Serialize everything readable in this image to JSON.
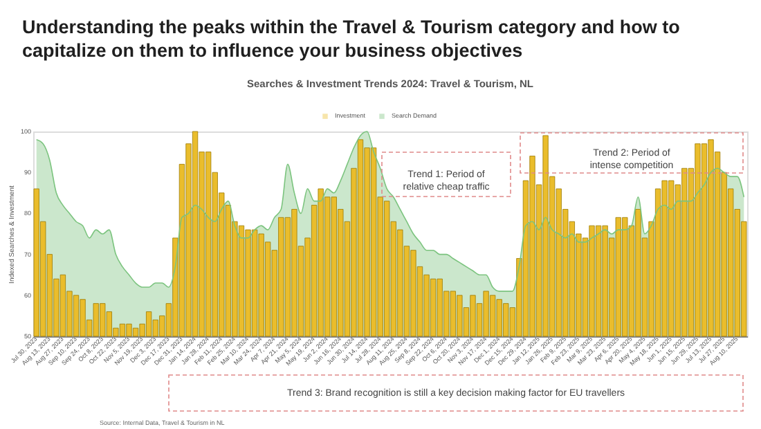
{
  "chart_data": {
    "type": "bar",
    "title": "Understanding the peaks within the Travel & Tourism category and how to capitalize on them to influence your business objectives",
    "subtitle": "Searches & Investment Trends 2024: Travel & Tourism, NL",
    "ylabel": "Indexed Searches & Investment",
    "categories": [
      "Jul 30, 2023",
      null,
      "Aug 13, 2023",
      null,
      "Aug 27, 2023",
      null,
      "Sep 10, 2023",
      null,
      "Sep 24, 2023",
      null,
      "Oct 8, 2023",
      null,
      "Oct 22, 2023",
      null,
      "Nov 5, 2023",
      null,
      "Nov 19, 2023",
      null,
      "Dec 3, 2023",
      null,
      "Dec 17, 2023",
      null,
      "Dec 31, 2023",
      null,
      "Jan 14, 2024",
      null,
      "Jan 28, 2024",
      null,
      "Feb 11, 2024",
      null,
      "Feb 25, 2024",
      null,
      "Mar 10, 2024",
      null,
      "Mar 24, 2024",
      null,
      "Apr 7, 2024",
      null,
      "Apr 21, 2024",
      null,
      "May 5, 2024",
      null,
      "May 19, 2024",
      null,
      "Jun 2, 2024",
      null,
      "Jun 16, 2024",
      null,
      "Jun 30, 2024",
      null,
      "Jul 14, 2024",
      null,
      "Jul 28, 2024",
      null,
      "Aug 11, 2024",
      null,
      "Aug 25, 2024",
      null,
      "Sep 8, 2024",
      null,
      "Sep 22, 2024",
      null,
      "Oct 6, 2024",
      null,
      "Oct 20, 2024",
      null,
      "Nov 3, 2024",
      null,
      "Nov 17, 2024",
      null,
      "Dec 1, 2024",
      null,
      "Dec 15, 2024",
      null,
      "Dec 29, 2024",
      null,
      "Jan 12, 2025",
      null,
      "Jan 26, 2025",
      null,
      "Feb 9, 2025",
      null,
      "Feb 23, 2025",
      null,
      "Mar 9, 2025",
      null,
      "Mar 23, 2025",
      null,
      "Apr 6, 2025",
      null,
      "Apr 20, 2025",
      null,
      "May 4, 2025",
      null,
      "May 18, 2025",
      null,
      "Jun 1, 2025",
      null,
      "Jun 15, 2025",
      null,
      "Jun 29, 2025",
      null,
      "Jul 13, 2025",
      null,
      "Jul 27, 2025",
      null,
      "Aug 10, 2025",
      null
    ],
    "series": [
      {
        "name": "Investment",
        "color": "#eabd2c",
        "values": [
          86,
          78,
          70,
          64,
          65,
          61,
          60,
          59,
          54,
          58,
          58,
          56,
          52,
          53,
          53,
          52,
          53,
          56,
          54,
          55,
          58,
          74,
          92,
          97,
          100,
          95,
          95,
          90,
          85,
          82,
          78,
          77,
          76,
          76,
          75,
          73,
          71,
          79,
          79,
          81,
          72,
          74,
          82,
          86,
          84,
          84,
          81,
          78,
          91,
          98,
          96,
          96,
          84,
          83,
          78,
          76,
          72,
          71,
          67,
          65,
          64,
          64,
          61,
          61,
          60,
          57,
          60,
          58,
          61,
          60,
          59,
          58,
          57,
          69,
          88,
          94,
          87,
          99,
          89,
          86,
          81,
          78,
          75,
          74,
          77,
          77,
          77,
          74,
          79,
          79,
          77,
          81,
          74,
          78,
          86,
          88,
          88,
          87,
          91,
          91,
          97,
          97,
          98,
          95,
          90,
          86,
          81,
          78
        ]
      },
      {
        "name": "Search Demand",
        "type": "area",
        "color": "#7cc47f",
        "values": [
          98,
          97,
          93,
          85,
          82,
          80,
          78,
          77,
          74,
          76,
          75,
          76,
          70,
          67,
          65,
          63,
          62,
          62,
          63,
          63,
          62,
          67,
          79,
          80,
          82,
          81,
          79,
          78,
          81,
          83,
          77,
          74,
          74,
          76,
          77,
          76,
          79,
          81,
          92,
          85,
          80,
          86,
          83,
          83,
          86,
          85,
          88,
          92,
          96,
          99,
          100,
          95,
          91,
          86,
          84,
          81,
          78,
          75,
          73,
          71,
          71,
          70,
          70,
          69,
          68,
          67,
          66,
          65,
          65,
          62,
          61,
          61,
          61,
          67,
          77,
          78,
          76,
          79,
          76,
          75,
          74,
          75,
          73,
          73,
          74,
          75,
          76,
          75,
          76,
          76,
          77,
          84,
          75,
          77,
          81,
          82,
          81,
          83,
          83,
          83,
          85,
          87,
          90,
          91,
          90,
          89,
          89,
          84
        ]
      }
    ],
    "ylim": [
      50,
      100
    ],
    "yticks": [
      50,
      60,
      70,
      80,
      90,
      100
    ],
    "legend": "top",
    "annotations": [
      "Trend 1: Period of relative cheap traffic",
      "Trend 2: Period of intense competition",
      "Trend 3: Brand recognition is still a key decision making factor for EU travellers",
      "Source: Internal Data, Travel & Tourism in NL"
    ]
  }
}
